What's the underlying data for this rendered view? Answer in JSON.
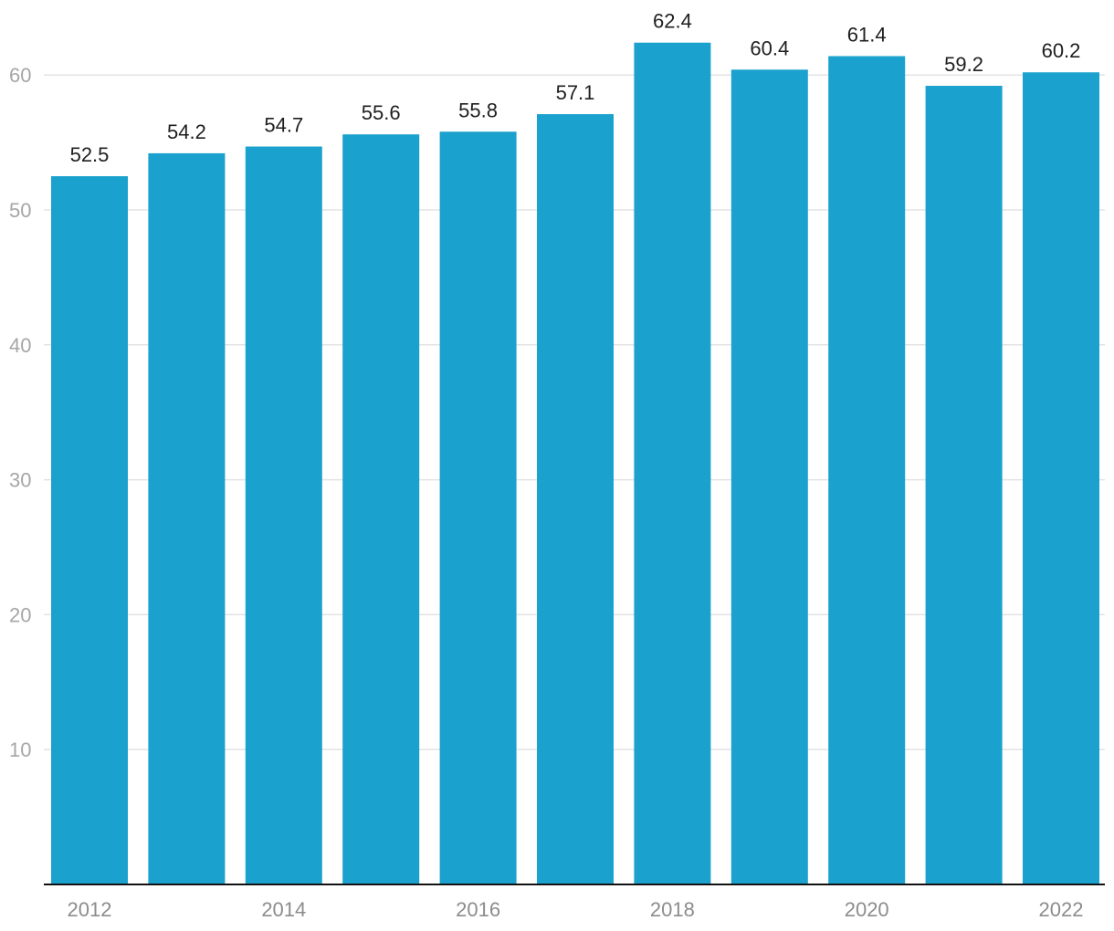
{
  "chart_data": {
    "type": "bar",
    "categories": [
      "2012",
      "2013",
      "2014",
      "2015",
      "2016",
      "2017",
      "2018",
      "2019",
      "2020",
      "2021",
      "2022"
    ],
    "values": [
      52.5,
      54.2,
      54.7,
      55.6,
      55.8,
      57.1,
      62.4,
      60.4,
      61.4,
      59.2,
      60.2
    ],
    "value_labels": [
      "52.5",
      "54.2",
      "54.7",
      "55.6",
      "55.8",
      "57.1",
      "62.4",
      "60.4",
      "61.4",
      "59.2",
      "60.2"
    ],
    "x_tick_labels": [
      "2012",
      "2014",
      "2016",
      "2018",
      "2020",
      "2022"
    ],
    "y_ticks": [
      10,
      20,
      30,
      40,
      50,
      60
    ],
    "ylim": [
      0,
      60
    ],
    "grid": true,
    "legend": "none",
    "colors": {
      "bar": "#1aa1cd",
      "grid": "#e3e3e3",
      "axis": "#111111",
      "label": "#1f1f1f",
      "tick": "#a6a6a6"
    }
  }
}
